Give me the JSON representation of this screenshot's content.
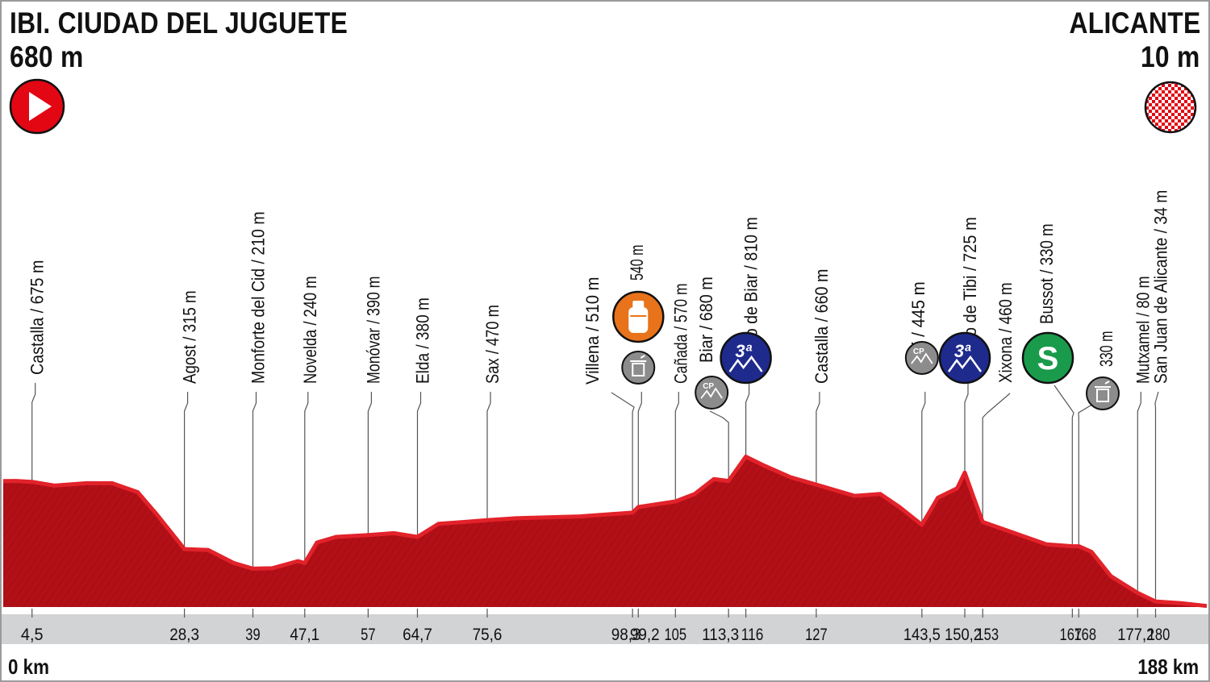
{
  "start": {
    "name": "IBI. CIUDAD DEL JUGUETE",
    "altitude": "680 m",
    "icon": "start-play-icon",
    "color": "#e30613"
  },
  "finish": {
    "name": "ALICANTE",
    "altitude": "10 m",
    "icon": "checkered-flag-icon"
  },
  "distance": {
    "start": "0 km",
    "end": "188 km",
    "total_km": 188
  },
  "colors": {
    "profile": "#b30f17",
    "profile_edge": "#e2222a",
    "axis_band": "#d1d3d4",
    "frame": "#9a9a9a",
    "kom": "#1e2a8c",
    "sprint": "#1a9b4b",
    "feed": "#e8731a",
    "icon_grey": "#8c8c8c"
  },
  "chart_data": {
    "type": "area",
    "x_unit": "km",
    "y_unit": "m",
    "xlim": [
      0,
      188
    ],
    "ylim": [
      0,
      900
    ],
    "profile": [
      [
        0,
        679
      ],
      [
        2,
        680
      ],
      [
        4.5,
        675
      ],
      [
        8,
        655
      ],
      [
        13,
        668
      ],
      [
        17,
        668
      ],
      [
        21,
        620
      ],
      [
        24,
        500
      ],
      [
        28.3,
        315
      ],
      [
        32,
        310
      ],
      [
        36,
        240
      ],
      [
        39,
        210
      ],
      [
        42,
        212
      ],
      [
        46,
        250
      ],
      [
        47.1,
        240
      ],
      [
        49,
        350
      ],
      [
        52,
        380
      ],
      [
        57,
        390
      ],
      [
        61,
        400
      ],
      [
        64.7,
        380
      ],
      [
        68,
        450
      ],
      [
        72,
        460
      ],
      [
        75.6,
        470
      ],
      [
        80,
        480
      ],
      [
        90,
        490
      ],
      [
        98.3,
        510
      ],
      [
        99.2,
        540
      ],
      [
        105,
        570
      ],
      [
        108,
        610
      ],
      [
        111,
        690
      ],
      [
        113.3,
        680
      ],
      [
        116,
        810
      ],
      [
        119,
        760
      ],
      [
        123,
        700
      ],
      [
        127,
        660
      ],
      [
        133,
        600
      ],
      [
        137,
        610
      ],
      [
        140,
        540
      ],
      [
        143.5,
        445
      ],
      [
        146,
        590
      ],
      [
        149,
        640
      ],
      [
        150.2,
        725
      ],
      [
        151.5,
        600
      ],
      [
        153,
        460
      ],
      [
        158,
        400
      ],
      [
        163,
        340
      ],
      [
        167,
        330
      ],
      [
        168,
        330
      ],
      [
        170,
        300
      ],
      [
        173,
        170
      ],
      [
        177.2,
        80
      ],
      [
        180,
        34
      ],
      [
        184,
        25
      ],
      [
        188,
        10
      ]
    ],
    "ticks": [
      {
        "km": 4.5,
        "label": "4,5"
      },
      {
        "km": 28.3,
        "label": "28,3"
      },
      {
        "km": 39,
        "label": "39"
      },
      {
        "km": 47.1,
        "label": "47,1"
      },
      {
        "km": 57,
        "label": "57"
      },
      {
        "km": 64.7,
        "label": "64,7"
      },
      {
        "km": 75.6,
        "label": "75,6"
      },
      {
        "km": 98.3,
        "label": "98,3"
      },
      {
        "km": 99.2,
        "label": "99,2"
      },
      {
        "km": 105,
        "label": "105"
      },
      {
        "km": 113.3,
        "label": "113,3"
      },
      {
        "km": 116,
        "label": "116"
      },
      {
        "km": 127,
        "label": "127"
      },
      {
        "km": 143.5,
        "label": "143,5"
      },
      {
        "km": 150.2,
        "label": "150,2"
      },
      {
        "km": 153,
        "label": "153"
      },
      {
        "km": 167,
        "label": "167"
      },
      {
        "km": 168,
        "label": "168"
      },
      {
        "km": 177.2,
        "label": "177,2"
      },
      {
        "km": 180,
        "label": "180"
      }
    ],
    "places": [
      {
        "km": 4.5,
        "label": "Castalla / 675 m"
      },
      {
        "km": 28.3,
        "label": "Agost / 315 m"
      },
      {
        "km": 39,
        "label": "Monforte del Cid / 210 m"
      },
      {
        "km": 47.1,
        "label": "Novelda / 240 m"
      },
      {
        "km": 57,
        "label": "Monóvar / 390 m"
      },
      {
        "km": 64.7,
        "label": "Elda / 380 m"
      },
      {
        "km": 75.6,
        "label": "Sax / 470 m"
      },
      {
        "km": 98.3,
        "label": "Villena / 510 m"
      },
      {
        "km": 99.2,
        "label": "540 m"
      },
      {
        "km": 105,
        "label": "Cañada / 570 m"
      },
      {
        "km": 113.3,
        "label": "Biar / 680 m"
      },
      {
        "km": 116,
        "label": "Puerto de Biar / 810 m"
      },
      {
        "km": 127,
        "label": "Castalla / 660 m"
      },
      {
        "km": 143.5,
        "label": "Tibi / 445 m"
      },
      {
        "km": 150.2,
        "label": "Puerto de Tibi / 725 m"
      },
      {
        "km": 153,
        "label": "Xixona / 460 m"
      },
      {
        "km": 167,
        "label": "Bussot / 330 m"
      },
      {
        "km": 168,
        "label": "330 m"
      },
      {
        "km": 177.2,
        "label": "Mutxamel / 80 m"
      },
      {
        "km": 180,
        "label": "San Juan de Alicante / 34 m"
      }
    ],
    "markers": [
      {
        "km": 99.2,
        "type": "feed",
        "icon": "bottle-icon"
      },
      {
        "km": 99.2,
        "type": "waste",
        "icon": "trash-icon"
      },
      {
        "km": 113.3,
        "type": "intermediate-point",
        "icon": "cp-mountain-icon",
        "text": "CP"
      },
      {
        "km": 116,
        "type": "kom",
        "icon": "mountain-icon",
        "text": "3ª"
      },
      {
        "km": 143.5,
        "type": "intermediate-point",
        "icon": "cp-mountain-icon",
        "text": "CP"
      },
      {
        "km": 150.2,
        "type": "kom",
        "icon": "mountain-icon",
        "text": "3ª"
      },
      {
        "km": 167,
        "type": "sprint",
        "icon": "sprint-icon",
        "text": "S"
      },
      {
        "km": 168,
        "type": "waste",
        "icon": "trash-icon"
      }
    ]
  }
}
